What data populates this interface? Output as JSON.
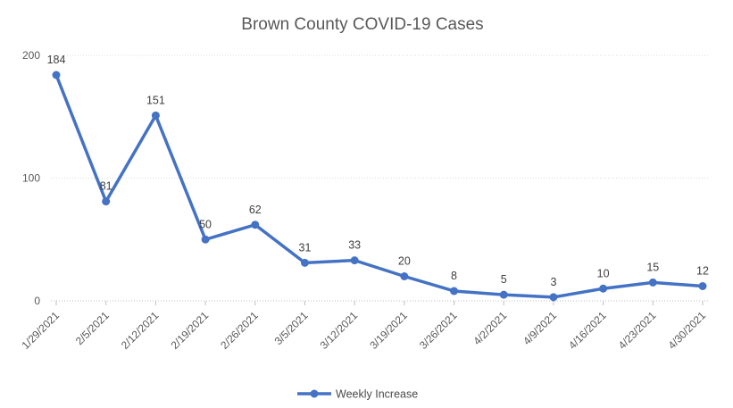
{
  "title": "Brown County COVID-19 Cases",
  "legend": {
    "label": "Weekly Increase"
  },
  "colors": {
    "series": "#4472C4",
    "title_text": "#595959",
    "axis_text": "#595959",
    "data_label_text": "#404040",
    "gridline": "#D9D9D9",
    "axis_line": "#BFBFBF"
  },
  "chart_data": {
    "type": "line",
    "title": "Brown County COVID-19 Cases",
    "categories": [
      "1/29/2021",
      "2/5/2021",
      "2/12/2021",
      "2/19/2021",
      "2/26/2021",
      "3/5/2021",
      "3/12/2021",
      "3/19/2021",
      "3/26/2021",
      "4/2/2021",
      "4/9/2021",
      "4/16/2021",
      "4/23/2021",
      "4/30/2021"
    ],
    "series": [
      {
        "name": "Weekly Increase",
        "values": [
          184,
          81,
          151,
          50,
          62,
          31,
          33,
          20,
          8,
          5,
          3,
          10,
          15,
          12
        ]
      }
    ],
    "xlabel": "",
    "ylabel": "",
    "ylim": [
      0,
      200
    ],
    "yticks": [
      0,
      100,
      200
    ],
    "grid": true,
    "grid_style": "dotted",
    "legend_position": "bottom",
    "markers": "circle",
    "data_labels": true,
    "x_label_rotation": -45
  }
}
